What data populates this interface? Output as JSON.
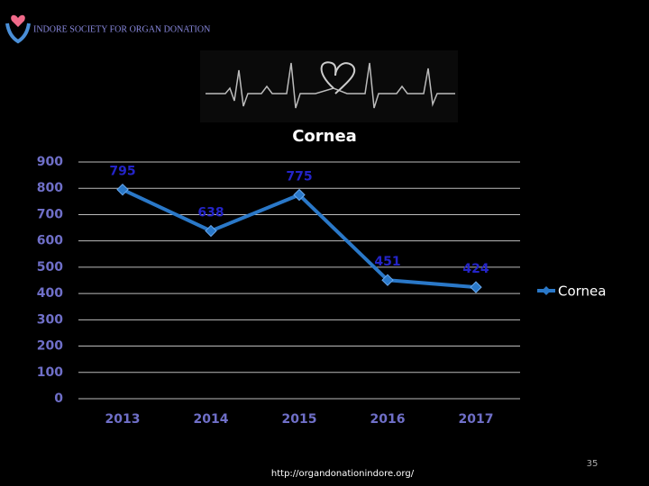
{
  "header": {
    "organization": "INDORE SOCIETY FOR ORGAN DONATION"
  },
  "chart_data": {
    "type": "line",
    "title": "Cornea",
    "categories": [
      "2013",
      "2014",
      "2015",
      "2016",
      "2017"
    ],
    "series": [
      {
        "name": "Cornea",
        "color": "#2a78c8",
        "values": [
          795,
          638,
          775,
          451,
          424
        ]
      }
    ],
    "ylim": [
      0,
      900
    ],
    "yticks": [
      0,
      100,
      200,
      300,
      400,
      500,
      600,
      700,
      800,
      900
    ],
    "grid": true,
    "legend": "right",
    "data_labels": true
  },
  "footer": {
    "url": "http://organdonationindore.org/",
    "page_number": "35"
  }
}
